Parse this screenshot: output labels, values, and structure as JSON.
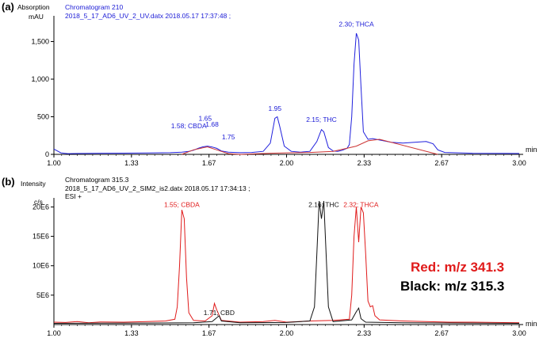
{
  "chart_data": [
    {
      "type": "line",
      "panel_label": "(a)",
      "ylabel": "Absorption",
      "title": "Chromatogram 210",
      "subtitle": "2018_5_17_AD6_UV_2_UV.datx 2018.05.17 17:37:48 ;",
      "y_unit": "mAU",
      "xlabel": "min",
      "xlim": [
        1.0,
        3.0
      ],
      "ylim": [
        0,
        1800
      ],
      "x_ticks": [
        "1.00",
        "1.33",
        "1.67",
        "2.00",
        "2.33",
        "2.67",
        "3.00"
      ],
      "y_ticks": [
        {
          "value": 0,
          "label": "0"
        },
        {
          "value": 500,
          "label": "500"
        },
        {
          "value": 1000,
          "label": "1,000"
        },
        {
          "value": 1500,
          "label": "1,500"
        }
      ],
      "series": [
        {
          "color": "#2020dd",
          "points": [
            [
              1.0,
              70
            ],
            [
              1.03,
              20
            ],
            [
              1.06,
              10
            ],
            [
              1.1,
              12
            ],
            [
              1.2,
              15
            ],
            [
              1.3,
              16
            ],
            [
              1.4,
              18
            ],
            [
              1.5,
              22
            ],
            [
              1.55,
              30
            ],
            [
              1.58,
              40
            ],
            [
              1.6,
              55
            ],
            [
              1.62,
              80
            ],
            [
              1.64,
              100
            ],
            [
              1.66,
              110
            ],
            [
              1.68,
              98
            ],
            [
              1.7,
              80
            ],
            [
              1.72,
              45
            ],
            [
              1.75,
              28
            ],
            [
              1.8,
              22
            ],
            [
              1.85,
              25
            ],
            [
              1.9,
              40
            ],
            [
              1.93,
              150
            ],
            [
              1.95,
              480
            ],
            [
              1.96,
              500
            ],
            [
              1.97,
              380
            ],
            [
              1.99,
              110
            ],
            [
              2.02,
              40
            ],
            [
              2.06,
              30
            ],
            [
              2.1,
              40
            ],
            [
              2.13,
              170
            ],
            [
              2.15,
              330
            ],
            [
              2.16,
              300
            ],
            [
              2.18,
              90
            ],
            [
              2.2,
              45
            ],
            [
              2.22,
              40
            ],
            [
              2.24,
              55
            ],
            [
              2.26,
              80
            ],
            [
              2.27,
              130
            ],
            [
              2.28,
              500
            ],
            [
              2.29,
              1200
            ],
            [
              2.3,
              1610
            ],
            [
              2.31,
              1520
            ],
            [
              2.32,
              900
            ],
            [
              2.33,
              300
            ],
            [
              2.35,
              200
            ],
            [
              2.37,
              210
            ],
            [
              2.4,
              190
            ],
            [
              2.45,
              160
            ],
            [
              2.5,
              150
            ],
            [
              2.55,
              160
            ],
            [
              2.6,
              170
            ],
            [
              2.63,
              140
            ],
            [
              2.65,
              60
            ],
            [
              2.68,
              25
            ],
            [
              2.8,
              15
            ],
            [
              3.0,
              12
            ]
          ]
        },
        {
          "color": "#cc3333",
          "points": [
            [
              1.55,
              0
            ],
            [
              1.6,
              60
            ],
            [
              1.66,
              100
            ],
            [
              1.7,
              60
            ],
            [
              1.75,
              10
            ],
            [
              1.8,
              0
            ],
            [
              1.93,
              15
            ],
            [
              2.0,
              20
            ],
            [
              2.1,
              25
            ],
            [
              2.2,
              40
            ],
            [
              2.3,
              110
            ],
            [
              2.35,
              180
            ],
            [
              2.4,
              200
            ],
            [
              2.65,
              0
            ]
          ]
        }
      ],
      "peak_labels": [
        {
          "x": 1.58,
          "y": 350,
          "label": "1.58; CBDA"
        },
        {
          "x": 1.65,
          "y": 450,
          "label": "1.65"
        },
        {
          "x": 1.68,
          "y": 370,
          "label": "1.68"
        },
        {
          "x": 1.75,
          "y": 200,
          "label": "1.75"
        },
        {
          "x": 1.95,
          "y": 580,
          "label": "1.95"
        },
        {
          "x": 2.15,
          "y": 430,
          "label": "2.15; THC"
        },
        {
          "x": 2.3,
          "y": 1700,
          "label": "2.30; THCA"
        }
      ]
    },
    {
      "type": "line",
      "panel_label": "(b)",
      "ylabel": "Intensity",
      "title": "Chromatogram 315.3",
      "subtitle": "2018_5_17_AD6_UV_2_SIM2_is2.datx 2018.05.17 17:34:13 ;",
      "subtitle2": "ESI +",
      "y_unit": "c/s",
      "xlabel": "min",
      "xlim": [
        1.0,
        3.0
      ],
      "ylim": [
        0,
        21000000
      ],
      "x_ticks": [
        "1.00",
        "1.33",
        "1.67",
        "2.00",
        "2.33",
        "2.67",
        "3.00"
      ],
      "y_ticks": [
        {
          "value": 5000000,
          "label": "5E6"
        },
        {
          "value": 10000000,
          "label": "10E6"
        },
        {
          "value": 15000000,
          "label": "15E6"
        },
        {
          "value": 20000000,
          "label": "20E6"
        }
      ],
      "series": [
        {
          "name": "Red: m/z 341.3",
          "color": "#e01b1b",
          "points": [
            [
              1.0,
              400000
            ],
            [
              1.05,
              350000
            ],
            [
              1.1,
              500000
            ],
            [
              1.15,
              300000
            ],
            [
              1.2,
              450000
            ],
            [
              1.3,
              400000
            ],
            [
              1.4,
              500000
            ],
            [
              1.48,
              600000
            ],
            [
              1.52,
              900000
            ],
            [
              1.53,
              3000000
            ],
            [
              1.54,
              10000000
            ],
            [
              1.55,
              19500000
            ],
            [
              1.56,
              18000000
            ],
            [
              1.57,
              8000000
            ],
            [
              1.58,
              2000000
            ],
            [
              1.6,
              700000
            ],
            [
              1.65,
              600000
            ],
            [
              1.68,
              1500000
            ],
            [
              1.69,
              3600000
            ],
            [
              1.7,
              2500000
            ],
            [
              1.72,
              700000
            ],
            [
              1.8,
              400000
            ],
            [
              1.9,
              500000
            ],
            [
              1.95,
              700000
            ],
            [
              2.0,
              400000
            ],
            [
              2.1,
              600000
            ],
            [
              2.2,
              700000
            ],
            [
              2.27,
              900000
            ],
            [
              2.28,
              5000000
            ],
            [
              2.29,
              15000000
            ],
            [
              2.3,
              20000000
            ],
            [
              2.31,
              14000000
            ],
            [
              2.32,
              20000000
            ],
            [
              2.33,
              19000000
            ],
            [
              2.34,
              12000000
            ],
            [
              2.35,
              4000000
            ],
            [
              2.36,
              3000000
            ],
            [
              2.37,
              3200000
            ],
            [
              2.38,
              1500000
            ],
            [
              2.4,
              800000
            ],
            [
              2.5,
              600000
            ],
            [
              2.6,
              500000
            ],
            [
              2.7,
              400000
            ],
            [
              2.8,
              400000
            ],
            [
              2.9,
              350000
            ],
            [
              3.0,
              300000
            ]
          ]
        },
        {
          "name": "Black: m/z 315.3",
          "color": "#111111",
          "points": [
            [
              1.0,
              200000
            ],
            [
              1.4,
              250000
            ],
            [
              1.6,
              300000
            ],
            [
              1.68,
              500000
            ],
            [
              1.71,
              1500000
            ],
            [
              1.72,
              600000
            ],
            [
              1.8,
              300000
            ],
            [
              2.0,
              350000
            ],
            [
              2.1,
              600000
            ],
            [
              2.12,
              3000000
            ],
            [
              2.13,
              12000000
            ],
            [
              2.14,
              21000000
            ],
            [
              2.15,
              18000000
            ],
            [
              2.16,
              21000000
            ],
            [
              2.17,
              12000000
            ],
            [
              2.18,
              3000000
            ],
            [
              2.2,
              500000
            ],
            [
              2.28,
              800000
            ],
            [
              2.3,
              2200000
            ],
            [
              2.31,
              2800000
            ],
            [
              2.32,
              1000000
            ],
            [
              2.34,
              400000
            ],
            [
              2.5,
              300000
            ],
            [
              3.0,
              200000
            ]
          ]
        }
      ],
      "peak_labels": [
        {
          "x": 1.55,
          "y": 20000000,
          "label": "1.55; CBDA",
          "color": "#e01b1b"
        },
        {
          "x": 1.71,
          "y": 1600000,
          "label": "1.71; CBD",
          "color": "#111111"
        },
        {
          "x": 2.16,
          "y": 20000000,
          "label": "2.16; THC",
          "color": "#111111"
        },
        {
          "x": 2.32,
          "y": 20000000,
          "label": "2.32; THCA",
          "color": "#e01b1b"
        }
      ],
      "legend": [
        "Red: m/z 341.3",
        "Black: m/z 315.3"
      ]
    }
  ]
}
